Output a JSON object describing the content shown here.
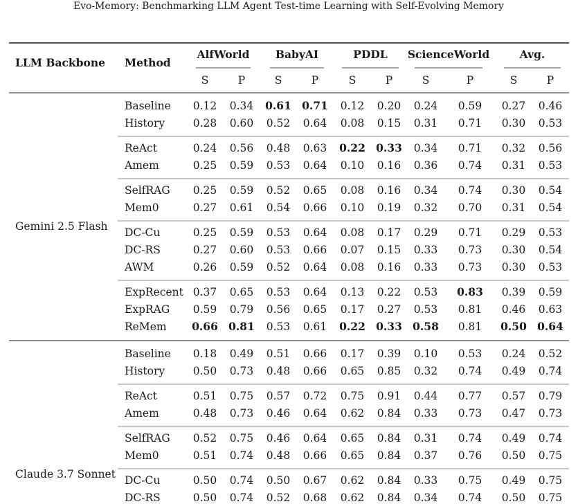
{
  "header": {
    "title": "Evo-Memory: Benchmarking LLM Agent Test-time Learning with Self-Evolving Memory"
  },
  "table": {
    "backbone_header": "LLM Backbone",
    "method_header": "Method",
    "groups": [
      "AlfWorld",
      "BabyAI",
      "PDDL",
      "ScienceWorld",
      "Avg."
    ],
    "subheaders": [
      "S",
      "P",
      "S",
      "P",
      "S",
      "P",
      "S",
      "P",
      "S",
      "P"
    ],
    "sections": [
      {
        "backbone": "Gemini 2.5 Flash",
        "groups": [
          [
            {
              "method": "Baseline",
              "values": [
                "0.12",
                "0.34",
                "0.61",
                "0.71",
                "0.12",
                "0.20",
                "0.24",
                "0.59",
                "0.27",
                "0.46"
              ],
              "bold": [
                false,
                false,
                true,
                true,
                false,
                false,
                false,
                false,
                false,
                false
              ]
            },
            {
              "method": "History",
              "values": [
                "0.28",
                "0.60",
                "0.52",
                "0.64",
                "0.08",
                "0.15",
                "0.31",
                "0.71",
                "0.30",
                "0.53"
              ]
            }
          ],
          [
            {
              "method": "ReAct",
              "values": [
                "0.24",
                "0.56",
                "0.48",
                "0.63",
                "0.22",
                "0.33",
                "0.34",
                "0.71",
                "0.32",
                "0.56"
              ],
              "bold": [
                false,
                false,
                false,
                false,
                true,
                true,
                false,
                false,
                false,
                false
              ]
            },
            {
              "method": "Amem",
              "values": [
                "0.25",
                "0.59",
                "0.53",
                "0.64",
                "0.10",
                "0.16",
                "0.36",
                "0.74",
                "0.31",
                "0.53"
              ]
            }
          ],
          [
            {
              "method": "SelfRAG",
              "values": [
                "0.25",
                "0.59",
                "0.52",
                "0.65",
                "0.08",
                "0.16",
                "0.34",
                "0.74",
                "0.30",
                "0.54"
              ]
            },
            {
              "method": "Mem0",
              "values": [
                "0.27",
                "0.61",
                "0.54",
                "0.66",
                "0.10",
                "0.19",
                "0.32",
                "0.70",
                "0.31",
                "0.54"
              ]
            }
          ],
          [
            {
              "method": "DC-Cu",
              "values": [
                "0.25",
                "0.59",
                "0.53",
                "0.64",
                "0.08",
                "0.17",
                "0.29",
                "0.71",
                "0.29",
                "0.53"
              ]
            },
            {
              "method": "DC-RS",
              "values": [
                "0.27",
                "0.60",
                "0.53",
                "0.66",
                "0.07",
                "0.15",
                "0.33",
                "0.73",
                "0.30",
                "0.54"
              ]
            },
            {
              "method": "AWM",
              "values": [
                "0.26",
                "0.59",
                "0.52",
                "0.64",
                "0.08",
                "0.16",
                "0.33",
                "0.73",
                "0.30",
                "0.53"
              ]
            }
          ],
          [
            {
              "method": "ExpRecent",
              "values": [
                "0.37",
                "0.65",
                "0.53",
                "0.64",
                "0.13",
                "0.22",
                "0.53",
                "0.83",
                "0.39",
                "0.59"
              ],
              "bold": [
                false,
                false,
                false,
                false,
                false,
                false,
                false,
                true,
                false,
                false
              ]
            },
            {
              "method": "ExpRAG",
              "values": [
                "0.59",
                "0.79",
                "0.56",
                "0.65",
                "0.17",
                "0.27",
                "0.53",
                "0.81",
                "0.46",
                "0.63"
              ]
            },
            {
              "method": "ReMem",
              "values": [
                "0.66",
                "0.81",
                "0.53",
                "0.61",
                "0.22",
                "0.33",
                "0.58",
                "0.81",
                "0.50",
                "0.64"
              ],
              "bold": [
                true,
                true,
                false,
                false,
                true,
                true,
                true,
                false,
                true,
                true
              ]
            }
          ]
        ]
      },
      {
        "backbone": "Claude 3.7 Sonnet",
        "groups": [
          [
            {
              "method": "Baseline",
              "values": [
                "0.18",
                "0.49",
                "0.51",
                "0.66",
                "0.17",
                "0.39",
                "0.10",
                "0.53",
                "0.24",
                "0.52"
              ]
            },
            {
              "method": "History",
              "values": [
                "0.50",
                "0.73",
                "0.48",
                "0.66",
                "0.65",
                "0.85",
                "0.32",
                "0.74",
                "0.49",
                "0.74"
              ]
            }
          ],
          [
            {
              "method": "ReAct",
              "values": [
                "0.51",
                "0.75",
                "0.57",
                "0.72",
                "0.75",
                "0.91",
                "0.44",
                "0.77",
                "0.57",
                "0.79"
              ]
            },
            {
              "method": "Amem",
              "values": [
                "0.48",
                "0.73",
                "0.46",
                "0.64",
                "0.62",
                "0.84",
                "0.33",
                "0.73",
                "0.47",
                "0.73"
              ]
            }
          ],
          [
            {
              "method": "SelfRAG",
              "values": [
                "0.52",
                "0.75",
                "0.46",
                "0.64",
                "0.65",
                "0.84",
                "0.31",
                "0.74",
                "0.49",
                "0.74"
              ]
            },
            {
              "method": "Mem0",
              "values": [
                "0.51",
                "0.74",
                "0.48",
                "0.66",
                "0.65",
                "0.84",
                "0.37",
                "0.76",
                "0.50",
                "0.75"
              ]
            }
          ],
          [
            {
              "method": "DC-Cu",
              "values": [
                "0.50",
                "0.74",
                "0.50",
                "0.67",
                "0.62",
                "0.84",
                "0.33",
                "0.75",
                "0.49",
                "0.75"
              ]
            },
            {
              "method": "DC-RS",
              "values": [
                "0.50",
                "0.74",
                "0.52",
                "0.68",
                "0.62",
                "0.84",
                "0.34",
                "0.74",
                "0.50",
                "0.75"
              ]
            }
          ]
        ]
      }
    ]
  }
}
